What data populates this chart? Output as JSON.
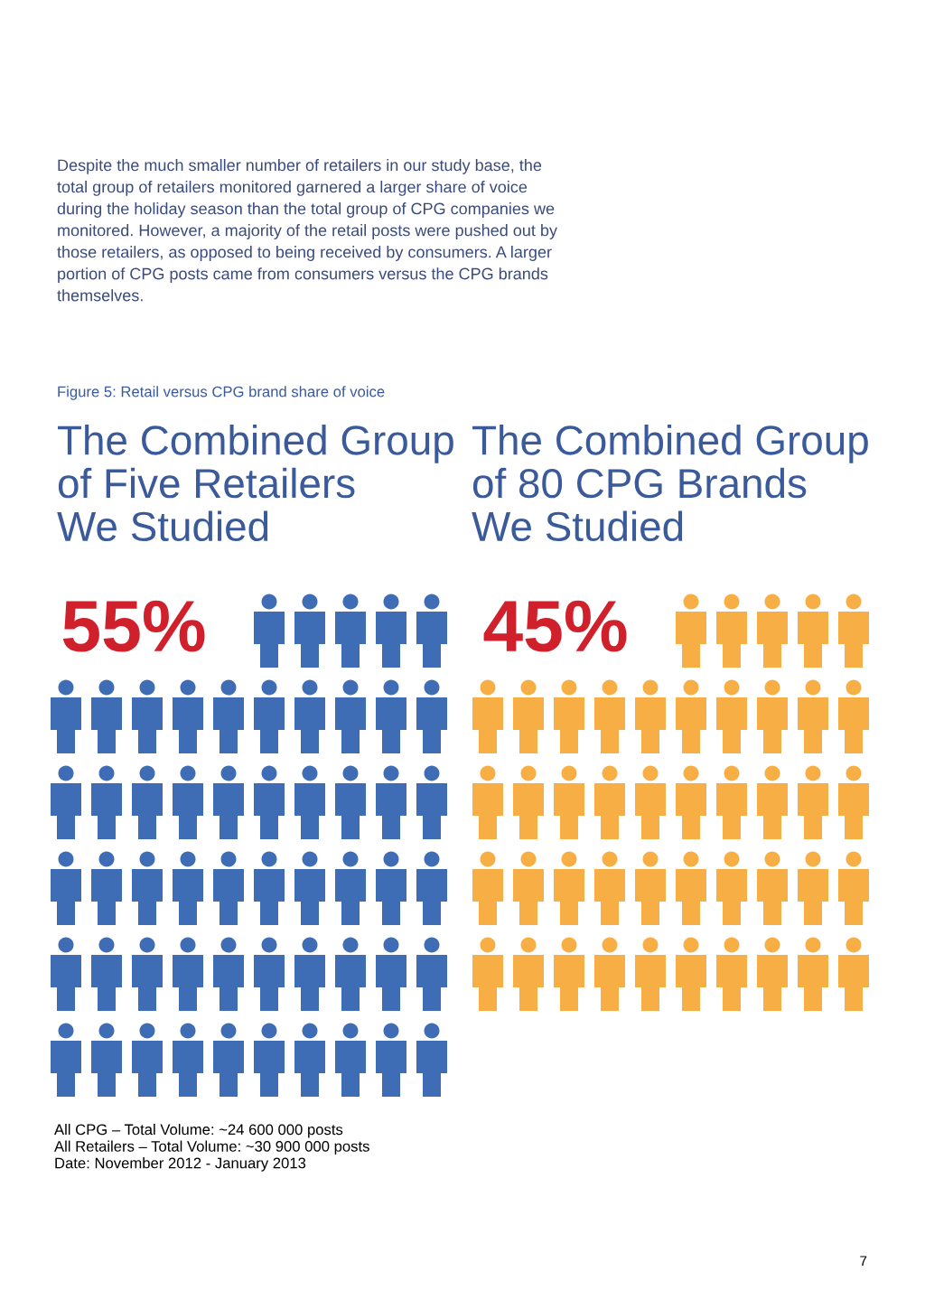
{
  "chart_data": {
    "type": "other",
    "title": "Figure 5: Retail versus CPG brand share of voice",
    "categories": [
      "The Combined Group\nof Five Retailers\nWe Studied",
      "The Combined Group\nof 80 CPG Brands\nWe Studied"
    ],
    "values": [
      55,
      45
    ],
    "colors": [
      "#3f6db5",
      "#f7ae45"
    ],
    "value_labels": [
      "55%",
      "45%"
    ],
    "annotations": [
      "Despite the much smaller number of retailers in our study base, the\ntotal group of retailers monitored garnered a larger share of voice\nduring the holiday season than the total group of CPG companies we\nmonitored. However, a majority of the retail posts were pushed out by\nthose retailers, as opposed to being received by consumers. A larger\nportion of CPG posts came from consumers versus the CPG brands\nthemselves.",
      "All CPG – Total Volume: ~24 600 000 posts\nAll Retailers – Total Volume: ~30 900 000 posts\nDate: November 2012 - January 2013",
      "7"
    ]
  }
}
